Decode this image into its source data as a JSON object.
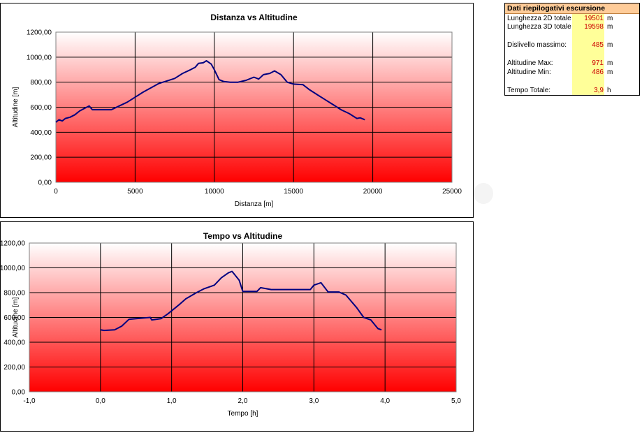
{
  "summary": {
    "title": "Dati riepilogativi escursione",
    "rows": [
      {
        "label": "Lunghezza 2D totale",
        "value": "19501",
        "unit": "m"
      },
      {
        "label": "Lunghezza 3D totale",
        "value": "19598",
        "unit": "m"
      },
      {
        "label": "Dislivello massimo:",
        "value": "485",
        "unit": "m"
      },
      {
        "label": "Altitudine Max:",
        "value": "971",
        "unit": "m"
      },
      {
        "label": "Altitudine Min:",
        "value": "486",
        "unit": "m"
      },
      {
        "label": "Tempo Totale:",
        "value": "3,9",
        "unit": "h"
      }
    ]
  },
  "chart_data": [
    {
      "type": "line",
      "title": "Distanza vs Altitudine",
      "xlabel": "Distanza [m]",
      "ylabel": "Altitudine [m]",
      "xlim": [
        0,
        25000
      ],
      "ylim": [
        0,
        1200
      ],
      "x_ticks": [
        "0",
        "5000",
        "10000",
        "15000",
        "20000",
        "25000"
      ],
      "y_ticks": [
        "0,00",
        "200,00",
        "400,00",
        "600,00",
        "800,00",
        "1000,00",
        "1200,00"
      ],
      "grid": true,
      "line_color": "#000080",
      "background_gradient": [
        "#ffffff",
        "#ff0000"
      ],
      "points": [
        [
          0,
          480
        ],
        [
          200,
          500
        ],
        [
          400,
          490
        ],
        [
          600,
          510
        ],
        [
          900,
          520
        ],
        [
          1200,
          540
        ],
        [
          1500,
          570
        ],
        [
          1800,
          590
        ],
        [
          2100,
          610
        ],
        [
          2300,
          580
        ],
        [
          2600,
          580
        ],
        [
          3000,
          580
        ],
        [
          3500,
          580
        ],
        [
          4000,
          610
        ],
        [
          4500,
          640
        ],
        [
          5000,
          680
        ],
        [
          5500,
          720
        ],
        [
          6000,
          755
        ],
        [
          6500,
          790
        ],
        [
          7000,
          810
        ],
        [
          7500,
          830
        ],
        [
          8000,
          870
        ],
        [
          8500,
          900
        ],
        [
          8800,
          920
        ],
        [
          9000,
          950
        ],
        [
          9300,
          955
        ],
        [
          9500,
          971
        ],
        [
          9800,
          945
        ],
        [
          10000,
          900
        ],
        [
          10300,
          820
        ],
        [
          10600,
          805
        ],
        [
          11000,
          800
        ],
        [
          11500,
          800
        ],
        [
          12000,
          815
        ],
        [
          12500,
          840
        ],
        [
          12800,
          825
        ],
        [
          13100,
          860
        ],
        [
          13500,
          870
        ],
        [
          13800,
          890
        ],
        [
          14200,
          860
        ],
        [
          14600,
          800
        ],
        [
          15000,
          785
        ],
        [
          15600,
          780
        ],
        [
          16000,
          740
        ],
        [
          16500,
          700
        ],
        [
          17000,
          660
        ],
        [
          17500,
          620
        ],
        [
          18000,
          580
        ],
        [
          18500,
          550
        ],
        [
          19000,
          510
        ],
        [
          19200,
          515
        ],
        [
          19500,
          500
        ]
      ]
    },
    {
      "type": "line",
      "title": "Tempo vs Altitudine",
      "xlabel": "Tempo [h]",
      "ylabel": "Altitudine [m]",
      "xlim": [
        -1,
        5
      ],
      "ylim": [
        0,
        1200
      ],
      "x_ticks": [
        "-1,0",
        "0,0",
        "1,0",
        "2,0",
        "3,0",
        "4,0",
        "5,0"
      ],
      "y_ticks": [
        "0,00",
        "200,00",
        "400,00",
        "600,00",
        "800,00",
        "1000,00",
        "1200,00"
      ],
      "grid": true,
      "line_color": "#000080",
      "background_gradient": [
        "#ffffff",
        "#ff0000"
      ],
      "points": [
        [
          0.0,
          500
        ],
        [
          0.05,
          495
        ],
        [
          0.2,
          500
        ],
        [
          0.3,
          530
        ],
        [
          0.4,
          585
        ],
        [
          0.5,
          590
        ],
        [
          0.6,
          595
        ],
        [
          0.7,
          600
        ],
        [
          0.72,
          580
        ],
        [
          0.85,
          590
        ],
        [
          0.95,
          630
        ],
        [
          1.1,
          700
        ],
        [
          1.2,
          750
        ],
        [
          1.35,
          800
        ],
        [
          1.45,
          830
        ],
        [
          1.6,
          860
        ],
        [
          1.7,
          920
        ],
        [
          1.8,
          960
        ],
        [
          1.85,
          971
        ],
        [
          1.95,
          900
        ],
        [
          2.0,
          810
        ],
        [
          2.2,
          810
        ],
        [
          2.25,
          840
        ],
        [
          2.4,
          825
        ],
        [
          2.8,
          825
        ],
        [
          2.95,
          825
        ],
        [
          3.0,
          860
        ],
        [
          3.1,
          880
        ],
        [
          3.2,
          805
        ],
        [
          3.35,
          805
        ],
        [
          3.45,
          780
        ],
        [
          3.6,
          680
        ],
        [
          3.7,
          600
        ],
        [
          3.8,
          580
        ],
        [
          3.9,
          510
        ],
        [
          3.95,
          500
        ]
      ]
    }
  ]
}
